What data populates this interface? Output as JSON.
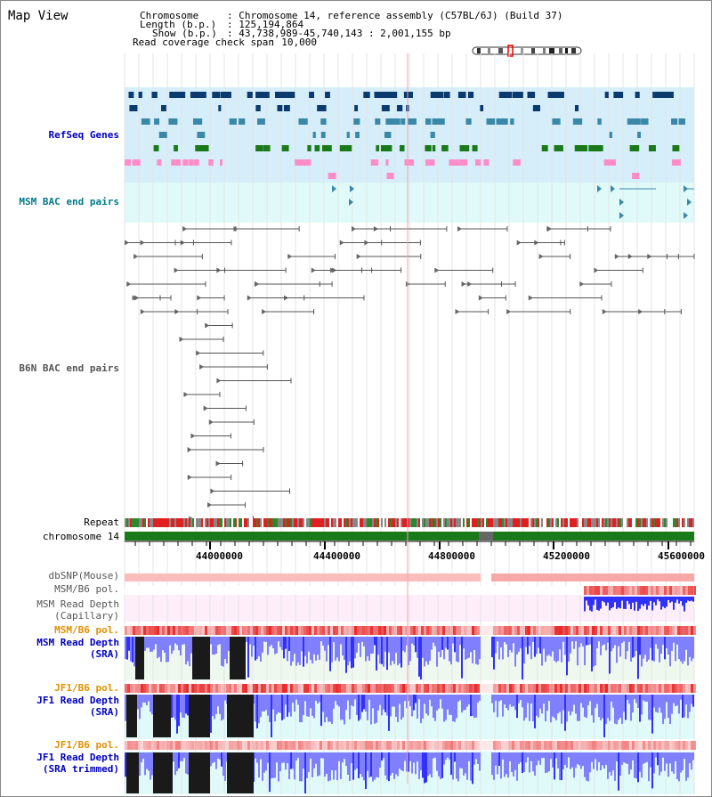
{
  "title": "Map View",
  "info": {
    "chromosome_key": "Chromosome",
    "chromosome_val": ": Chromosome 14, reference assembly (C57BL/6J) (Build 37)",
    "length_key": "Length (b.p.)",
    "length_val": ": 125,194,864",
    "show_key": "Show (b.p.)",
    "show_val": ": 43,738,989-45,740,143 : 2,001,155 bp",
    "coverage_key": "Read coverage check span",
    "coverage_val": ": 10,000"
  },
  "tracks": {
    "refseq": "RefSeq Genes",
    "msm_bac": "MSM BAC end pairs",
    "b6n_bac": "B6N BAC end pairs",
    "repeat": "Repeat",
    "chromosome": "chromosome 14",
    "dbsnp": "dbSNP(Mouse)",
    "msm_b6_pol": "MSM/B6 pol.",
    "msm_depth_cap_1": "MSM Read Depth",
    "msm_depth_cap_2": "(Capillary)",
    "msm_b6_pol_2": "MSM/B6 pol.",
    "msm_depth_sra_1": "MSM Read Depth",
    "msm_depth_sra_2": "(SRA)",
    "jf1_b6_pol": "JF1/B6 pol.",
    "jf1_depth_sra_1": "JF1 Read Depth",
    "jf1_depth_sra_2": "(SRA)",
    "jf1_b6_pol_2": "JF1/B6 pol.",
    "jf1_depth_trim_1": "JF1 Read Depth",
    "jf1_depth_trim_2": "(SRA trimmed)"
  },
  "axis": {
    "ticks": [
      "44000000",
      "44400000",
      "44800000",
      "45200000",
      "45600000"
    ]
  },
  "colors": {
    "refseq_bg": "#d6eefa",
    "msm_bac_bg": "#e0fafa",
    "gene_dark": "#0a3a6e",
    "gene_mid": "#3a88a8",
    "gene_green": "#1a7a1a",
    "gene_pink": "#ff8cc8",
    "chrom_green": "#1a7a1a",
    "depth_blue": "#3030ff",
    "depth_light": "#8080ff",
    "pol_red": "#e83030"
  }
}
